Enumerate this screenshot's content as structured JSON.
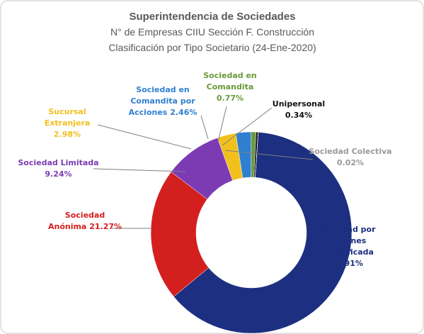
{
  "chart_data": {
    "type": "donut",
    "title": "Superintendencia de Sociedades",
    "subtitle": [
      "N° de Empresas CIIU Sección F. Construcción",
      "Clasificación por Tipo Societario (24-Ene-2020)"
    ],
    "categories": [
      "Sociedad por Acciones Simplificada",
      "Sociedad Anónima",
      "Sociedad Limitada",
      "Sucursal Extranjera",
      "Sociedad en Comandita por Acciones",
      "Sociedad en Comandita",
      "Unipersonal",
      "Sociedad Colectiva"
    ],
    "values": [
      62.91,
      21.27,
      9.24,
      2.98,
      2.46,
      0.77,
      0.34,
      0.02
    ],
    "value_labels": [
      "62.91%",
      "21.27%",
      "9.24%",
      "2.98%",
      "2.46%",
      "0.77%",
      "0.34%",
      "0.02%"
    ],
    "colors": [
      "#1c2f80",
      "#d41f1f",
      "#7c3bb3",
      "#f2c01d",
      "#2f7fd1",
      "#6a9a3a",
      "#111111",
      "#9a9a9a"
    ]
  }
}
